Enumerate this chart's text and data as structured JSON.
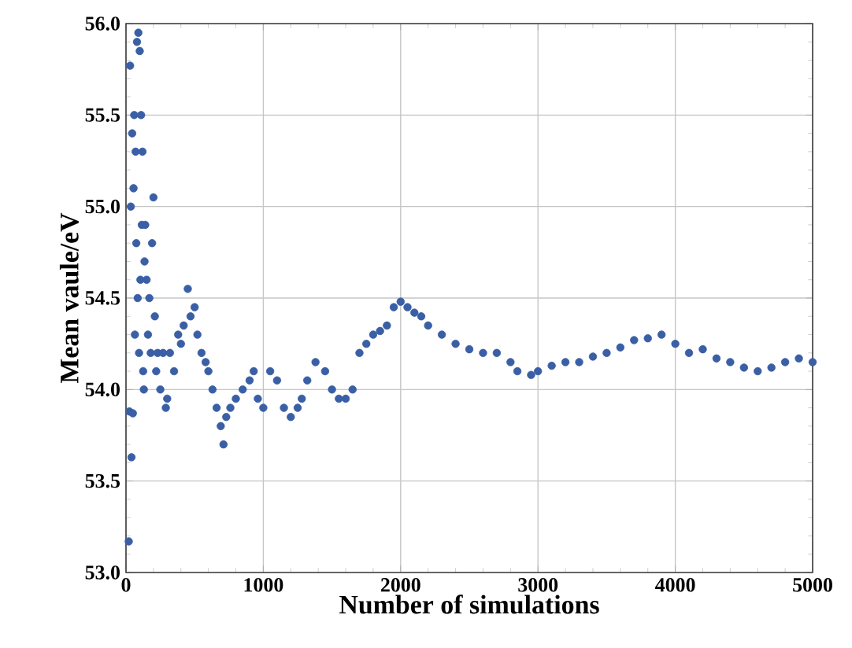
{
  "chart_data": {
    "type": "scatter",
    "xlabel": "Number of simulations",
    "ylabel": "Mean vaule/eV",
    "x": [
      20,
      25,
      30,
      35,
      40,
      45,
      50,
      55,
      60,
      65,
      70,
      75,
      80,
      85,
      90,
      95,
      100,
      105,
      110,
      115,
      120,
      125,
      130,
      135,
      140,
      150,
      160,
      170,
      180,
      190,
      200,
      210,
      220,
      230,
      250,
      270,
      290,
      300,
      320,
      350,
      380,
      400,
      420,
      450,
      470,
      500,
      520,
      550,
      580,
      600,
      630,
      660,
      690,
      710,
      730,
      760,
      800,
      850,
      900,
      930,
      960,
      1000,
      1050,
      1100,
      1150,
      1200,
      1250,
      1280,
      1320,
      1380,
      1450,
      1500,
      1550,
      1600,
      1650,
      1700,
      1750,
      1800,
      1850,
      1900,
      1950,
      2000,
      2050,
      2100,
      2150,
      2200,
      2300,
      2400,
      2500,
      2600,
      2700,
      2800,
      2850,
      2950,
      3000,
      3100,
      3200,
      3300,
      3400,
      3500,
      3600,
      3700,
      3800,
      3900,
      4000,
      4100,
      4200,
      4300,
      4400,
      4500,
      4600,
      4700,
      4800,
      4900,
      5000
    ],
    "values": [
      53.17,
      53.88,
      55.77,
      55.0,
      53.63,
      55.4,
      53.87,
      55.1,
      55.5,
      54.3,
      55.3,
      54.8,
      55.9,
      54.5,
      55.95,
      54.2,
      55.85,
      54.6,
      55.5,
      54.9,
      55.3,
      54.1,
      54.0,
      54.7,
      54.9,
      54.6,
      54.3,
      54.5,
      54.2,
      54.8,
      55.05,
      54.4,
      54.1,
      54.2,
      54.0,
      54.2,
      53.9,
      53.95,
      54.2,
      54.1,
      54.3,
      54.25,
      54.35,
      54.55,
      54.4,
      54.45,
      54.3,
      54.2,
      54.15,
      54.1,
      54.0,
      53.9,
      53.8,
      53.7,
      53.85,
      53.9,
      53.95,
      54.0,
      54.05,
      54.1,
      53.95,
      53.9,
      54.1,
      54.05,
      53.9,
      53.85,
      53.9,
      53.95,
      54.05,
      54.15,
      54.1,
      54.0,
      53.95,
      53.95,
      54.0,
      54.2,
      54.25,
      54.3,
      54.32,
      54.35,
      54.45,
      54.48,
      54.45,
      54.42,
      54.4,
      54.35,
      54.3,
      54.25,
      54.22,
      54.2,
      54.2,
      54.15,
      54.1,
      54.08,
      54.1,
      54.13,
      54.15,
      54.15,
      54.18,
      54.2,
      54.23,
      54.27,
      54.28,
      54.3,
      54.25,
      54.2,
      54.22,
      54.17,
      54.15,
      54.12,
      54.1,
      54.12,
      54.15,
      54.17,
      54.15
    ],
    "color": "#3a5fa5",
    "marker": "circle",
    "grid": true,
    "xlim": [
      0,
      5000
    ],
    "xticks": [
      0,
      1000,
      2000,
      3000,
      4000,
      5000
    ],
    "ylim": [
      53,
      56
    ],
    "yticks": [
      {
        "value": 53,
        "label": "53.0"
      },
      {
        "value": 53.5,
        "label": "53.5"
      },
      {
        "value": 54,
        "label": "54.0"
      },
      {
        "value": 54.5,
        "label": "54.5"
      },
      {
        "value": 55,
        "label": "55.0"
      },
      {
        "value": 55.5,
        "label": "55.5"
      },
      {
        "value": 56,
        "label": "56.0"
      }
    ]
  }
}
